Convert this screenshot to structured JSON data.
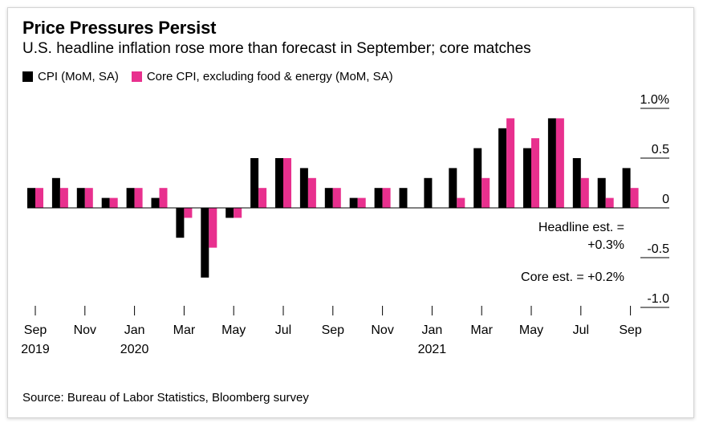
{
  "title": "Price Pressures Persist",
  "subtitle": "U.S. headline inflation rose more than forecast in September; core matches",
  "legend": [
    {
      "label": "CPI (MoM, SA)",
      "color": "#000000"
    },
    {
      "label": "Core CPI, excluding food & energy (MoM, SA)",
      "color": "#e8308e"
    }
  ],
  "source": "Source: Bureau of Labor Statistics, Bloomberg survey",
  "annotations": {
    "headline_line1": "Headline est. =",
    "headline_line2": "+0.3%",
    "core": "Core est. = +0.2%"
  },
  "chart_data": {
    "type": "bar",
    "categories": [
      "Sep 2019",
      "Oct 2019",
      "Nov 2019",
      "Dec 2019",
      "Jan 2020",
      "Feb 2020",
      "Mar 2020",
      "Apr 2020",
      "May 2020",
      "Jun 2020",
      "Jul 2020",
      "Aug 2020",
      "Sep 2020",
      "Oct 2020",
      "Nov 2020",
      "Dec 2020",
      "Jan 2021",
      "Feb 2021",
      "Mar 2021",
      "Apr 2021",
      "May 2021",
      "Jun 2021",
      "Jul 2021",
      "Aug 2021",
      "Sep 2021"
    ],
    "series": [
      {
        "name": "CPI (MoM, SA)",
        "color": "#000000",
        "values": [
          0.2,
          0.3,
          0.2,
          0.1,
          0.2,
          0.1,
          -0.3,
          -0.7,
          -0.1,
          0.5,
          0.5,
          0.4,
          0.2,
          0.1,
          0.2,
          0.2,
          0.3,
          0.4,
          0.6,
          0.8,
          0.6,
          0.9,
          0.5,
          0.3,
          0.4
        ]
      },
      {
        "name": "Core CPI, excluding food & energy (MoM, SA)",
        "color": "#e8308e",
        "values": [
          0.2,
          0.2,
          0.2,
          0.1,
          0.2,
          0.2,
          -0.1,
          -0.4,
          -0.1,
          0.2,
          0.5,
          0.3,
          0.2,
          0.1,
          0.2,
          0.0,
          0.0,
          0.1,
          0.3,
          0.9,
          0.7,
          0.9,
          0.3,
          0.1,
          0.2
        ]
      }
    ],
    "x_tick_labels": [
      {
        "index": 0,
        "month": "Sep",
        "year": "2019"
      },
      {
        "index": 2,
        "month": "Nov",
        "year": ""
      },
      {
        "index": 4,
        "month": "Jan",
        "year": "2020"
      },
      {
        "index": 6,
        "month": "Mar",
        "year": ""
      },
      {
        "index": 8,
        "month": "May",
        "year": ""
      },
      {
        "index": 10,
        "month": "Jul",
        "year": ""
      },
      {
        "index": 12,
        "month": "Sep",
        "year": ""
      },
      {
        "index": 14,
        "month": "Nov",
        "year": ""
      },
      {
        "index": 16,
        "month": "Jan",
        "year": "2021"
      },
      {
        "index": 18,
        "month": "Mar",
        "year": ""
      },
      {
        "index": 20,
        "month": "May",
        "year": ""
      },
      {
        "index": 22,
        "month": "Jul",
        "year": ""
      },
      {
        "index": 24,
        "month": "Sep",
        "year": ""
      }
    ],
    "y_ticks": [
      {
        "value": 1.0,
        "label": "1.0%"
      },
      {
        "value": 0.5,
        "label": "0.5"
      },
      {
        "value": 0,
        "label": "0"
      },
      {
        "value": -0.5,
        "label": "-0.5"
      },
      {
        "value": -1.0,
        "label": "-1.0"
      }
    ],
    "ylim": [
      -1.0,
      1.0
    ],
    "grid": false,
    "legend_position": "top-left"
  }
}
